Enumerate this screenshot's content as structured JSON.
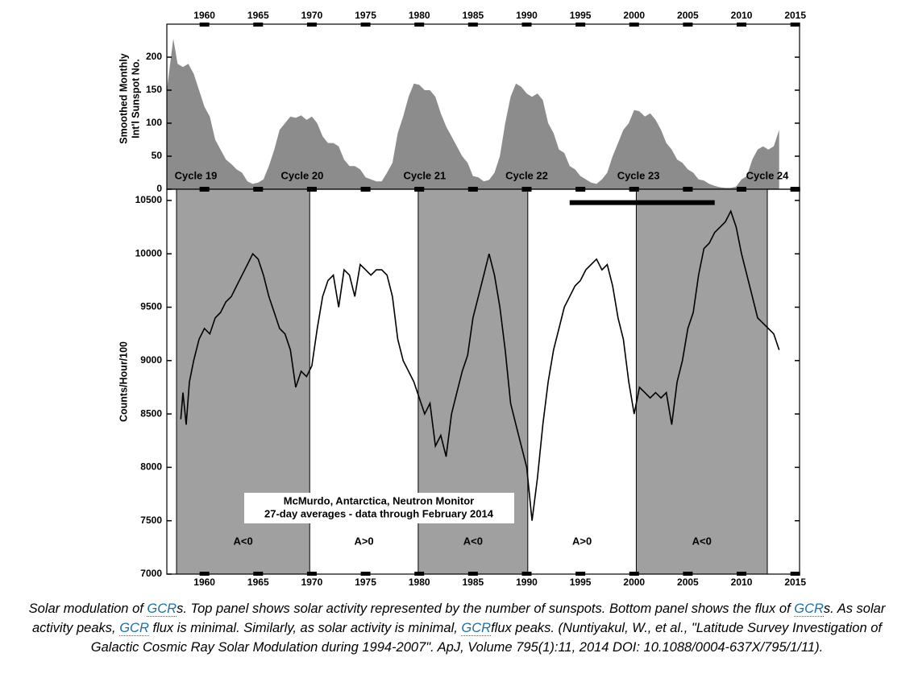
{
  "chart_data": [
    {
      "type": "area",
      "ylabel": [
        "Smoothed Monthly",
        "Int'l Sunspot No."
      ],
      "color": "#8c8c8c",
      "xlim": [
        1956.5,
        2015.4
      ],
      "ylim": [
        0,
        250
      ],
      "xticks": [
        1960,
        1965,
        1970,
        1975,
        1980,
        1985,
        1990,
        1995,
        2000,
        2005,
        2010,
        2015
      ],
      "yticks": [
        0,
        50,
        100,
        150,
        200
      ],
      "annotations": [
        {
          "text": "Cycle 19",
          "x": 1959.2
        },
        {
          "text": "Cycle 20",
          "x": 1969.1
        },
        {
          "text": "Cycle 21",
          "x": 1980.5
        },
        {
          "text": "Cycle 22",
          "x": 1990
        },
        {
          "text": "Cycle 23",
          "x": 2000.4
        },
        {
          "text": "Cycle 24",
          "x": 2012.4
        }
      ],
      "x": [
        1956.5,
        1957.1,
        1957.5,
        1958,
        1958.5,
        1959,
        1959.5,
        1960,
        1960.5,
        1961,
        1961.5,
        1962,
        1962.5,
        1963,
        1963.5,
        1964,
        1964.5,
        1965,
        1965.5,
        1966,
        1966.5,
        1967,
        1967.5,
        1968,
        1968.5,
        1969,
        1969.5,
        1970,
        1970.5,
        1971,
        1971.5,
        1972,
        1972.5,
        1973,
        1973.5,
        1974,
        1974.5,
        1975,
        1975.5,
        1976,
        1976.5,
        1977,
        1977.5,
        1978,
        1978.5,
        1979,
        1979.5,
        1980,
        1980.5,
        1981,
        1981.5,
        1982,
        1982.5,
        1983,
        1983.5,
        1984,
        1984.5,
        1985,
        1985.5,
        1986,
        1986.5,
        1987,
        1987.5,
        1988,
        1988.5,
        1989,
        1989.5,
        1990,
        1990.5,
        1991,
        1991.5,
        1992,
        1992.5,
        1993,
        1993.5,
        1994,
        1994.5,
        1995,
        1995.5,
        1996,
        1996.5,
        1997,
        1997.5,
        1998,
        1998.5,
        1999,
        1999.5,
        2000,
        2000.5,
        2001,
        2001.5,
        2002,
        2002.5,
        2003,
        2003.5,
        2004,
        2004.5,
        2005,
        2005.5,
        2006,
        2006.5,
        2007,
        2007.5,
        2008,
        2008.5,
        2009,
        2009.5,
        2010,
        2010.5,
        2011,
        2011.5,
        2012,
        2012.5,
        2013,
        2013.5
      ],
      "values": [
        150,
        228,
        190,
        185,
        190,
        175,
        150,
        125,
        110,
        75,
        60,
        45,
        38,
        30,
        25,
        12,
        8,
        10,
        15,
        35,
        60,
        90,
        100,
        110,
        108,
        112,
        105,
        110,
        100,
        80,
        70,
        70,
        65,
        45,
        35,
        35,
        30,
        18,
        15,
        12,
        12,
        25,
        40,
        85,
        110,
        140,
        160,
        158,
        150,
        150,
        140,
        115,
        95,
        80,
        65,
        50,
        40,
        20,
        18,
        12,
        14,
        25,
        50,
        100,
        140,
        160,
        155,
        145,
        140,
        145,
        135,
        100,
        85,
        60,
        55,
        35,
        30,
        20,
        15,
        10,
        8,
        15,
        25,
        50,
        70,
        90,
        100,
        120,
        118,
        110,
        115,
        105,
        90,
        70,
        60,
        45,
        40,
        30,
        25,
        15,
        13,
        8,
        5,
        3,
        2,
        2,
        4,
        15,
        20,
        45,
        60,
        65,
        60,
        65,
        90
      ]
    },
    {
      "type": "line",
      "ylabel": "Counts/Hour/100",
      "color": "#000000",
      "xlim": [
        1956.5,
        2015.4
      ],
      "ylim": [
        7000,
        10605
      ],
      "xticks": [
        1960,
        1965,
        1970,
        1975,
        1980,
        1985,
        1990,
        1995,
        2000,
        2005,
        2010,
        2015
      ],
      "yticks": [
        7000,
        7500,
        8000,
        8500,
        9000,
        9500,
        10000,
        10500
      ],
      "regions": [
        {
          "from": 1957.4,
          "to": 1969.8,
          "label": "A<0",
          "shaded": true
        },
        {
          "from": 1969.8,
          "to": 1979.9,
          "label": "A>0",
          "shaded": false
        },
        {
          "from": 1979.9,
          "to": 1990.1,
          "label": "A<0",
          "shaded": true
        },
        {
          "from": 1990.1,
          "to": 2000.2,
          "label": "A>0",
          "shaded": false
        },
        {
          "from": 2000.2,
          "to": 2012.4,
          "label": "A<0",
          "shaded": true
        }
      ],
      "region_label_y": 7300,
      "survey_bar": {
        "x": [
          1994,
          2007.5
        ],
        "y": 10480
      },
      "note": [
        "McMurdo, Antarctica, Neutron Monitor",
        "27-day averages - data through February 2014"
      ],
      "x": [
        1957.8,
        1958,
        1958.3,
        1958.6,
        1959,
        1959.5,
        1960,
        1960.5,
        1961,
        1961.5,
        1962,
        1962.5,
        1963,
        1963.5,
        1964,
        1964.5,
        1965,
        1965.5,
        1966,
        1966.5,
        1967,
        1967.5,
        1968,
        1968.5,
        1969,
        1969.5,
        1970,
        1970.5,
        1971,
        1971.5,
        1972,
        1972.5,
        1973,
        1973.5,
        1974,
        1974.5,
        1975,
        1975.5,
        1976,
        1976.5,
        1977,
        1977.5,
        1978,
        1978.5,
        1979,
        1979.5,
        1980,
        1980.5,
        1981,
        1981.5,
        1982,
        1982.5,
        1983,
        1983.5,
        1984,
        1984.5,
        1985,
        1985.5,
        1986,
        1986.5,
        1987,
        1987.5,
        1988,
        1988.5,
        1989,
        1989.5,
        1990,
        1990.5,
        1991,
        1991.5,
        1992,
        1992.5,
        1993,
        1993.5,
        1994,
        1994.5,
        1995,
        1995.5,
        1996,
        1996.5,
        1997,
        1997.5,
        1998,
        1998.5,
        1999,
        1999.5,
        2000,
        2000.5,
        2001,
        2001.5,
        2002,
        2002.5,
        2003,
        2003.5,
        2004,
        2004.5,
        2005,
        2005.5,
        2006,
        2006.5,
        2007,
        2007.5,
        2008,
        2008.5,
        2009,
        2009.5,
        2010,
        2010.5,
        2011,
        2011.5,
        2012,
        2012.5,
        2013,
        2013.5
      ],
      "values": [
        8450,
        8700,
        8400,
        8800,
        9000,
        9200,
        9300,
        9250,
        9400,
        9450,
        9550,
        9600,
        9700,
        9800,
        9900,
        10000,
        9950,
        9800,
        9600,
        9450,
        9300,
        9250,
        9100,
        8750,
        8900,
        8850,
        8950,
        9300,
        9600,
        9750,
        9800,
        9500,
        9850,
        9800,
        9600,
        9900,
        9850,
        9800,
        9850,
        9850,
        9800,
        9600,
        9200,
        9000,
        8900,
        8800,
        8650,
        8500,
        8600,
        8200,
        8300,
        8100,
        8500,
        8700,
        8900,
        9050,
        9400,
        9600,
        9800,
        10000,
        9800,
        9500,
        9100,
        8600,
        8400,
        8200,
        8000,
        7500,
        7900,
        8400,
        8800,
        9100,
        9300,
        9500,
        9600,
        9700,
        9750,
        9850,
        9900,
        9950,
        9850,
        9900,
        9700,
        9400,
        9200,
        8800,
        8500,
        8750,
        8700,
        8650,
        8700,
        8650,
        8700,
        8400,
        8800,
        9000,
        9300,
        9450,
        9800,
        10050,
        10100,
        10200,
        10250,
        10300,
        10400,
        10250,
        10000,
        9800,
        9600,
        9400,
        9350,
        9300,
        9250,
        9100
      ]
    }
  ],
  "caption": [
    {
      "text": "Solar modulation of "
    },
    {
      "text": "GCR",
      "link": true
    },
    {
      "text": "s. Top panel shows solar activity represented by the number of sunspots. Bottom panel shows the flux of "
    },
    {
      "text": "GCR",
      "link": true
    },
    {
      "text": "s. As solar activity peaks, "
    },
    {
      "text": "GCR",
      "link": true
    },
    {
      "text": " flux is minimal. Similarly, as solar activity is minimal, "
    },
    {
      "text": "GCR",
      "link": true
    },
    {
      "text": "flux peaks. (Nuntiyakul, W., et al., \"Latitude Survey Investigation of Galactic Cosmic Ray Solar Modulation during 1994-2007\". ApJ, Volume 795(1):11, 2014 DOI: 10.1088/0004-637X/795/1/11)."
    }
  ]
}
